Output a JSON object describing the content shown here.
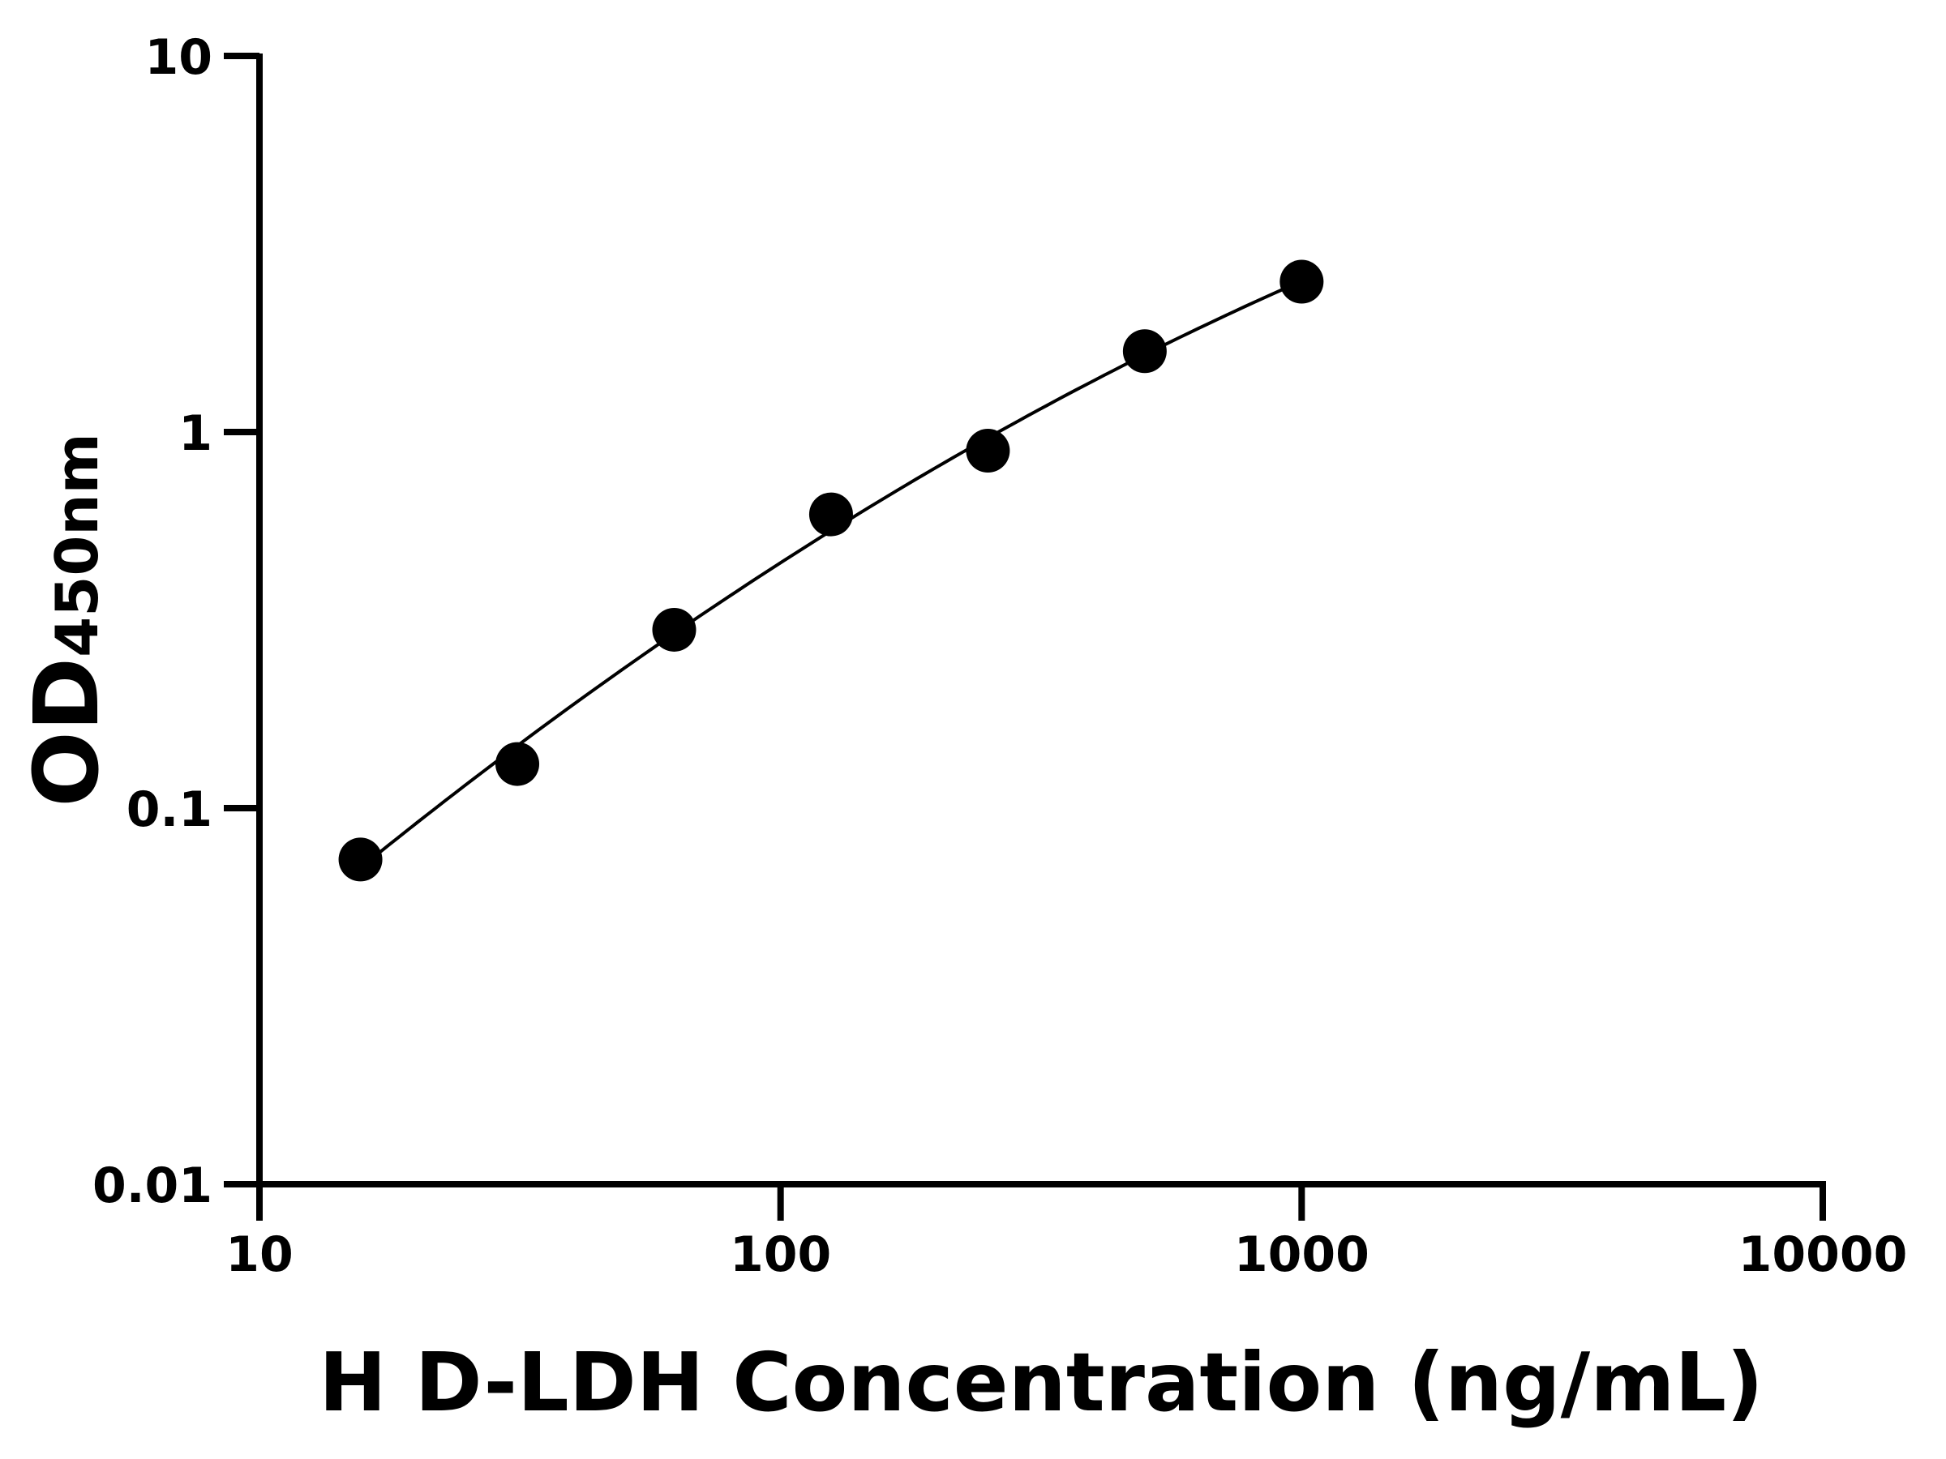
{
  "chart_data": {
    "type": "scatter",
    "title": "",
    "xlabel": "H D-LDH Concentration (ng/mL)",
    "ylabel_main": "OD",
    "ylabel_suffix": "450nm",
    "xscale": "log",
    "yscale": "log",
    "xlim": [
      10,
      10000
    ],
    "ylim": [
      0.01,
      10
    ],
    "xticks": [
      "10",
      "100",
      "1000",
      "10000"
    ],
    "yticks": [
      "10",
      "1",
      "0.1",
      "0.01"
    ],
    "grid": false,
    "fit_curve": true,
    "marker_color": "#000000",
    "series": [
      {
        "x": [
          15.625,
          31.25,
          62.5,
          125,
          250,
          500,
          1000
        ],
        "y": [
          0.073,
          0.131,
          0.298,
          0.604,
          0.892,
          1.64,
          2.51
        ]
      }
    ]
  }
}
